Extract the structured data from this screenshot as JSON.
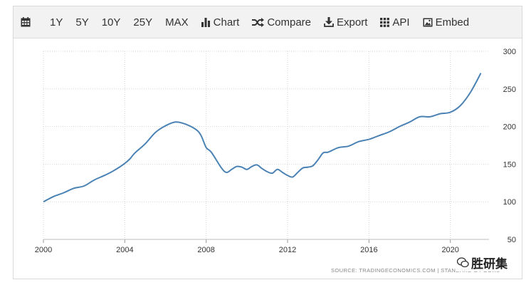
{
  "toolbar": {
    "calendar_icon": "calendar-icon",
    "range_buttons": [
      "1Y",
      "5Y",
      "10Y",
      "25Y",
      "MAX"
    ],
    "chart_label": "Chart",
    "compare_label": "Compare",
    "export_label": "Export",
    "api_label": "API",
    "embed_label": "Embed"
  },
  "source_text": "SOURCE: TRADINGECONOMICS.COM  |  STANDARD & POORS",
  "watermark": "胜研集",
  "colors": {
    "line": "#4a82b4",
    "grid": "#d4d4d4",
    "toolbar_bg": "#f2f2f2"
  },
  "chart_data": {
    "type": "line",
    "title": "",
    "xlabel": "",
    "ylabel": "",
    "xlim": [
      2000,
      2021.9
    ],
    "ylim": [
      50,
      300
    ],
    "x_ticks": [
      2000,
      2004,
      2008,
      2012,
      2016,
      2020
    ],
    "y_ticks": [
      50,
      100,
      150,
      200,
      250,
      300
    ],
    "grid": true,
    "legend": "none",
    "series": [
      {
        "x": [
          2000.0,
          2000.5,
          2001.0,
          2001.5,
          2002.0,
          2002.5,
          2003.0,
          2003.5,
          2004.0,
          2004.25,
          2004.5,
          2005.0,
          2005.5,
          2006.0,
          2006.5,
          2007.0,
          2007.5,
          2007.75,
          2008.0,
          2008.25,
          2008.75,
          2009.0,
          2009.25,
          2009.5,
          2009.75,
          2010.0,
          2010.25,
          2010.5,
          2010.75,
          2011.0,
          2011.25,
          2011.5,
          2011.75,
          2012.0,
          2012.25,
          2012.5,
          2012.75,
          2013.0,
          2013.25,
          2013.5,
          2013.75,
          2014.0,
          2014.5,
          2015.0,
          2015.5,
          2016.0,
          2016.5,
          2017.0,
          2017.5,
          2018.0,
          2018.5,
          2019.0,
          2019.5,
          2020.0,
          2020.5,
          2021.0,
          2021.5
        ],
        "y": [
          100,
          107,
          112,
          118,
          121,
          129,
          135,
          142,
          151,
          157,
          165,
          177,
          192,
          201,
          206,
          203,
          196,
          188,
          172,
          166,
          145,
          139,
          143,
          147,
          146,
          143,
          147,
          149,
          144,
          140,
          138,
          143,
          139,
          135,
          133,
          139,
          145,
          146,
          148,
          156,
          165,
          166,
          172,
          174,
          180,
          183,
          188,
          193,
          200,
          206,
          213,
          213,
          217,
          219,
          228,
          246,
          271
        ]
      }
    ]
  }
}
